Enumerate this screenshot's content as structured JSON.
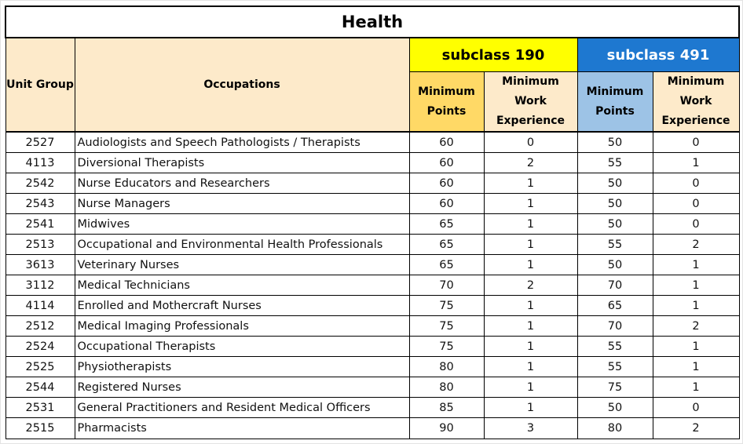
{
  "table": {
    "title": "Health",
    "headers": {
      "unit_group": "Unit Group",
      "occupations": "Occupations",
      "subclass_190": "subclass 190",
      "subclass_491": "subclass 491",
      "min_points_190": "Minimum Points",
      "min_work_190": "Minimum Work Experience",
      "min_points_491": "Minimum Points",
      "min_work_491": "Minimum Work Experience"
    },
    "rows": [
      {
        "unit": "2527",
        "occupation": "Audiologists and Speech Pathologists / Therapists",
        "p190": "60",
        "w190": "0",
        "p491": "50",
        "w491": "0"
      },
      {
        "unit": "4113",
        "occupation": "Diversional Therapists",
        "p190": "60",
        "w190": "2",
        "p491": "55",
        "w491": "1"
      },
      {
        "unit": "2542",
        "occupation": "Nurse Educators and Researchers",
        "p190": "60",
        "w190": "1",
        "p491": "50",
        "w491": "0"
      },
      {
        "unit": "2543",
        "occupation": "Nurse Managers",
        "p190": "60",
        "w190": "1",
        "p491": "50",
        "w491": "0"
      },
      {
        "unit": "2541",
        "occupation": "Midwives",
        "p190": "65",
        "w190": "1",
        "p491": "50",
        "w491": "0"
      },
      {
        "unit": "2513",
        "occupation": "Occupational and Environmental Health Professionals",
        "p190": "65",
        "w190": "1",
        "p491": "55",
        "w491": "2"
      },
      {
        "unit": "3613",
        "occupation": "Veterinary Nurses",
        "p190": "65",
        "w190": "1",
        "p491": "50",
        "w491": "1"
      },
      {
        "unit": "3112",
        "occupation": "Medical Technicians",
        "p190": "70",
        "w190": "2",
        "p491": "70",
        "w491": "1"
      },
      {
        "unit": "4114",
        "occupation": "Enrolled and Mothercraft Nurses",
        "p190": "75",
        "w190": "1",
        "p491": "65",
        "w491": "1"
      },
      {
        "unit": "2512",
        "occupation": "Medical Imaging Professionals",
        "p190": "75",
        "w190": "1",
        "p491": "70",
        "w491": "2"
      },
      {
        "unit": "2524",
        "occupation": "Occupational Therapists",
        "p190": "75",
        "w190": "1",
        "p491": "55",
        "w491": "1"
      },
      {
        "unit": "2525",
        "occupation": "Physiotherapists",
        "p190": "80",
        "w190": "1",
        "p491": "55",
        "w491": "1"
      },
      {
        "unit": "2544",
        "occupation": "Registered Nurses",
        "p190": "80",
        "w190": "1",
        "p491": "75",
        "w491": "1"
      },
      {
        "unit": "2531",
        "occupation": "General Practitioners and Resident Medical Officers",
        "p190": "85",
        "w190": "1",
        "p491": "50",
        "w491": "0"
      },
      {
        "unit": "2515",
        "occupation": "Pharmacists",
        "p190": "90",
        "w190": "3",
        "p491": "80",
        "w491": "2"
      }
    ]
  },
  "colors": {
    "subclass_190": "#ffff00",
    "subclass_491": "#1e78d0",
    "min_points_190": "#ffd966",
    "min_points_491": "#9dc3e6",
    "header_fill": "#fdeaca"
  }
}
